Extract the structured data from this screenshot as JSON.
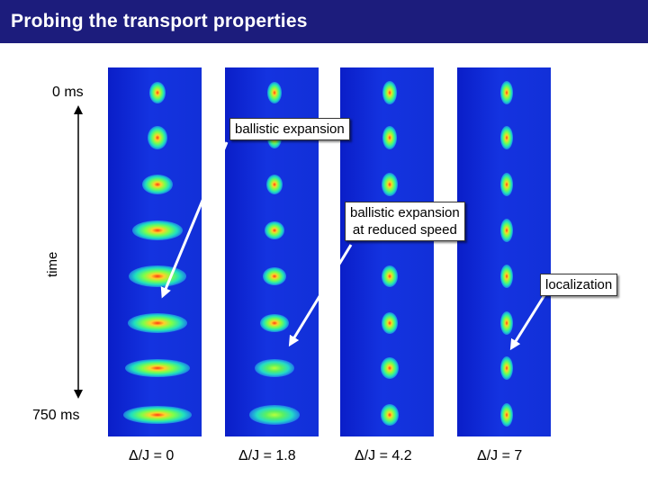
{
  "title": "Probing the transport properties",
  "axis": {
    "start_label": "0 ms",
    "end_label": "750 ms",
    "time_label": "time"
  },
  "annotations": {
    "ballistic": "ballistic expansion",
    "reduced_line1": "ballistic expansion",
    "reduced_line2": "at reduced speed",
    "localization": "localization"
  },
  "panels": [
    {
      "label": "Δ/J = 0"
    },
    {
      "label": "Δ/J = 1.8"
    },
    {
      "label": "Δ/J = 4.2"
    },
    {
      "label": "Δ/J = 7"
    }
  ],
  "colors": {
    "title_bar": "#1c1c7c",
    "panel_background": "#1230d8"
  }
}
